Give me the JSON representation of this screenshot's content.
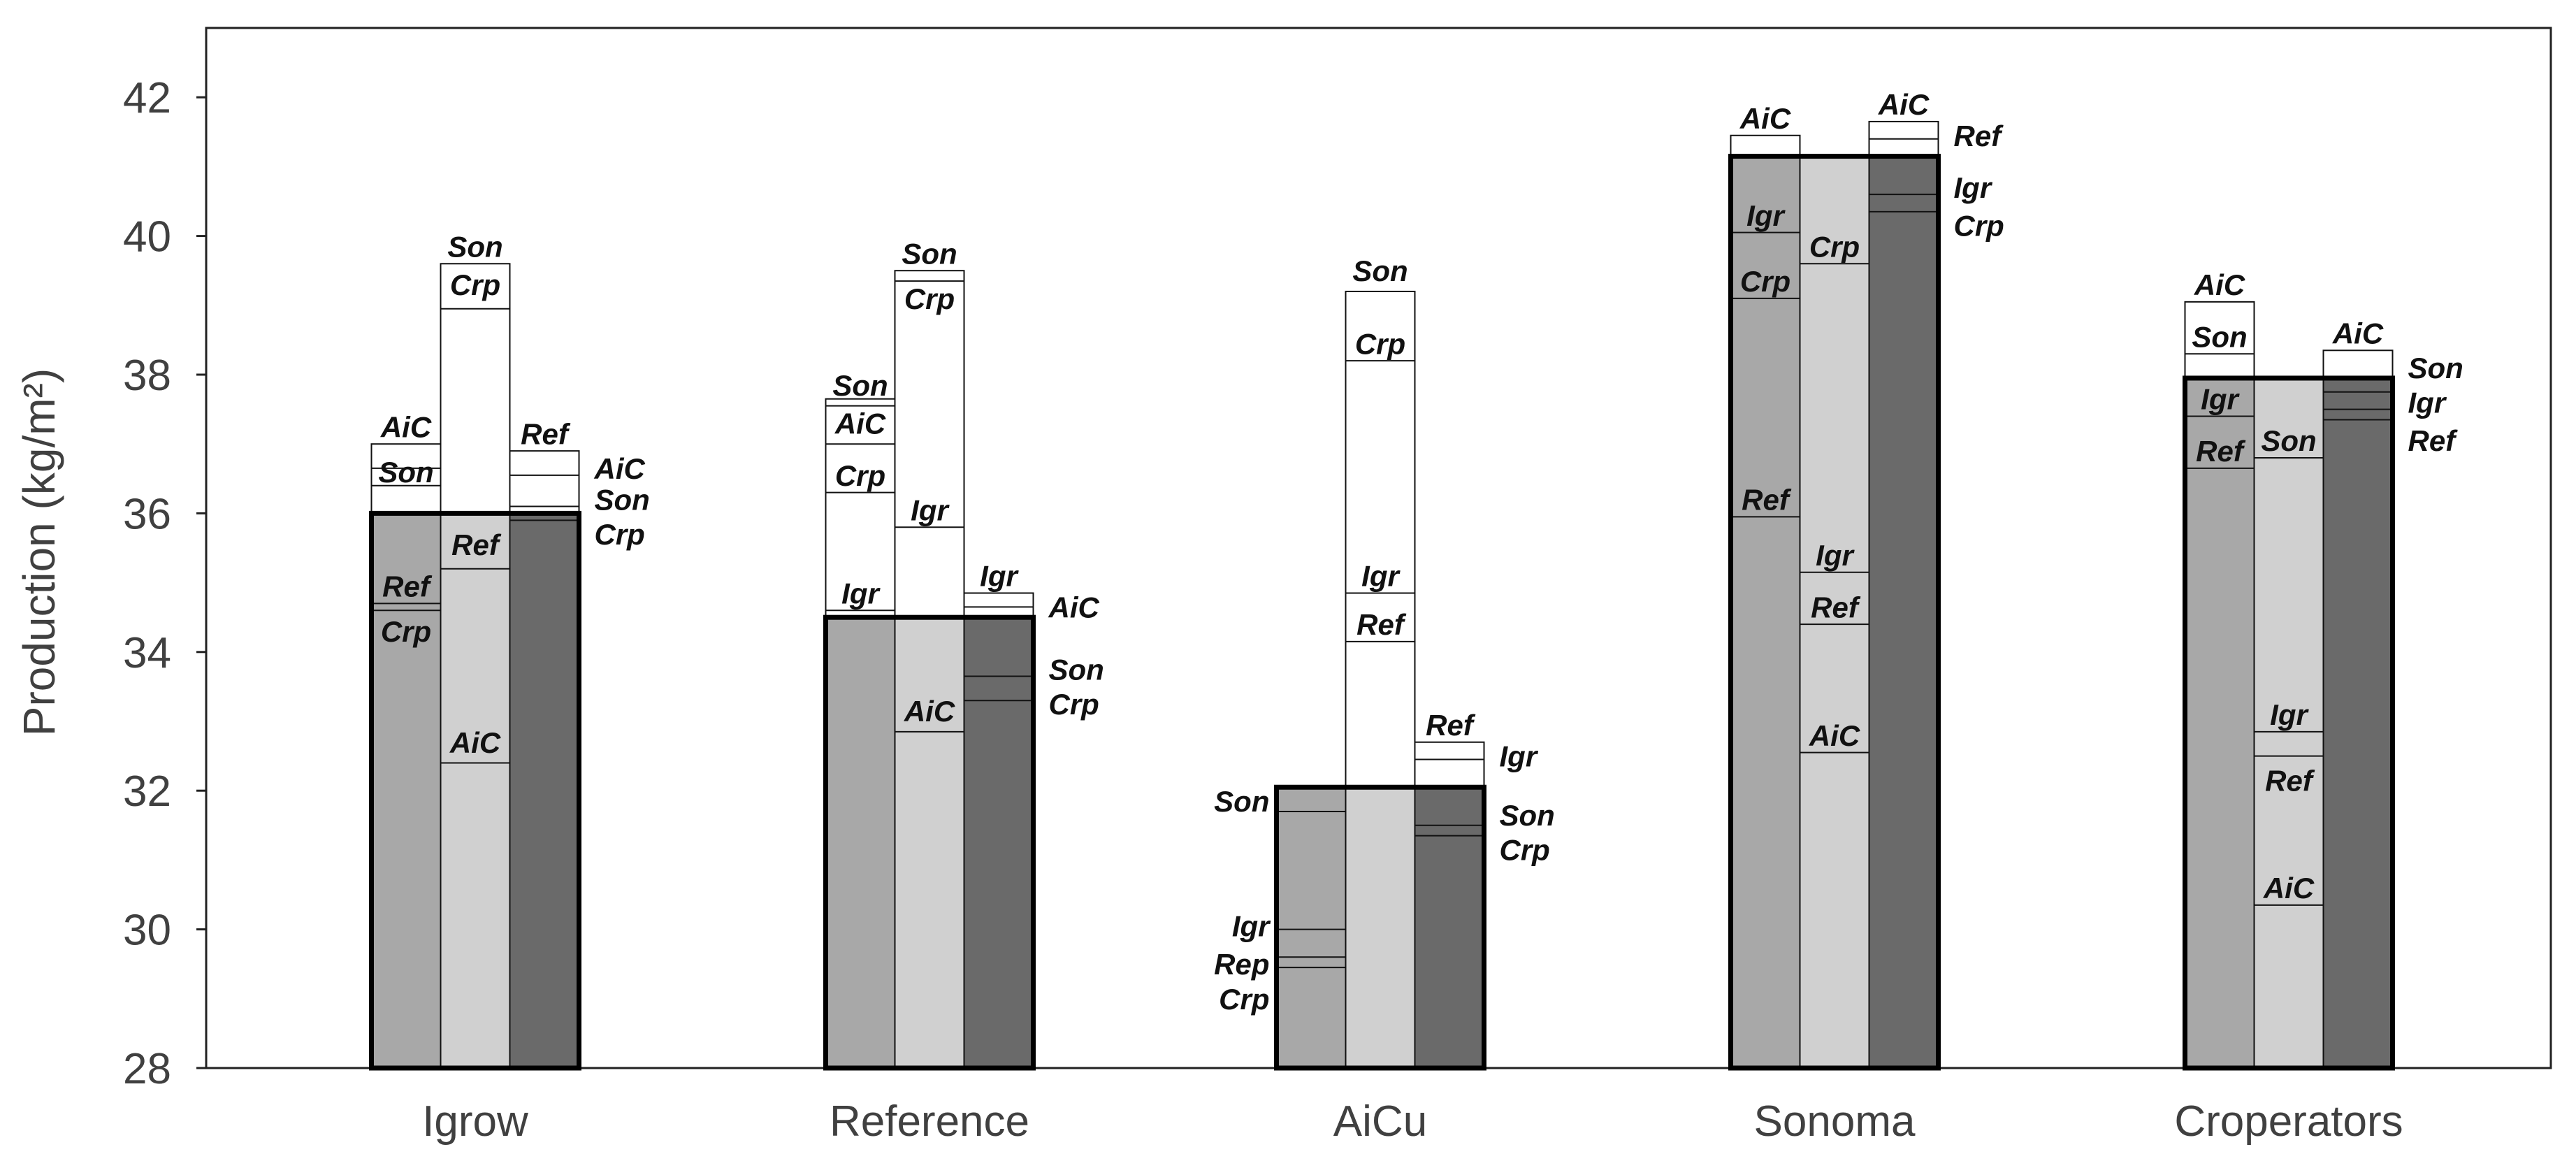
{
  "chart_data": {
    "type": "bar",
    "title": "",
    "xlabel": "",
    "ylabel": "Production (kg/m²)",
    "ylim": [
      28,
      43
    ],
    "yticks": [
      28,
      30,
      32,
      34,
      36,
      38,
      40,
      42
    ],
    "colors": {
      "col1": "#a8a8a8",
      "col2": "#d0d0d0",
      "col3": "#6a6a6a",
      "box": "#ffffff"
    },
    "groups": [
      {
        "name": "Igrow",
        "base": 36.0,
        "columns": [
          {
            "color": "col1",
            "top": 37.0,
            "lines": [
              36.65,
              36.4,
              34.7,
              34.6
            ],
            "inside": [
              {
                "t": "Ref",
                "v": 34.95
              },
              {
                "t": "Crp",
                "v": 34.3
              }
            ],
            "above": [
              {
                "t": "AiC",
                "v": 37.25
              },
              {
                "t": "Son",
                "v": 36.6
              }
            ],
            "right": []
          },
          {
            "color": "col2",
            "top": 39.6,
            "lines": [
              38.95,
              35.2,
              32.4
            ],
            "inside": [
              {
                "t": "Ref",
                "v": 35.55
              },
              {
                "t": "AiC",
                "v": 32.7
              }
            ],
            "above": [
              {
                "t": "Son",
                "v": 39.85
              },
              {
                "t": "Crp",
                "v": 39.3
              }
            ],
            "right": []
          },
          {
            "color": "col3",
            "top": 36.9,
            "lines": [
              36.55,
              36.1,
              35.9
            ],
            "inside": [],
            "above": [
              {
                "t": "Ref",
                "v": 37.15
              }
            ],
            "right": [
              {
                "t": "AiC",
                "v": 36.65
              },
              {
                "t": "Son",
                "v": 36.2
              },
              {
                "t": "Crp",
                "v": 35.7
              }
            ]
          }
        ]
      },
      {
        "name": "Reference",
        "base": 34.5,
        "columns": [
          {
            "color": "col1",
            "top": 37.65,
            "lines": [
              37.55,
              37.0,
              36.3,
              34.6
            ],
            "inside": [
              {
                "t": "Son",
                "v": 37.85
              },
              {
                "t": "AiC",
                "v": 37.3
              },
              {
                "t": "Crp",
                "v": 36.55
              }
            ],
            "above": [
              {
                "t": "Igr",
                "v": 34.85
              }
            ],
            "right": []
          },
          {
            "color": "col2",
            "top": 39.5,
            "lines": [
              39.35,
              35.8,
              32.85
            ],
            "inside": [
              {
                "t": "Crp",
                "v": 39.1
              },
              {
                "t": "Igr",
                "v": 36.05
              },
              {
                "t": "AiC",
                "v": 33.15
              }
            ],
            "above": [
              {
                "t": "Son",
                "v": 39.75
              }
            ],
            "right": []
          },
          {
            "color": "col3",
            "top": 34.85,
            "lines": [
              34.65,
              33.65,
              33.3
            ],
            "inside": [],
            "above": [
              {
                "t": "Igr",
                "v": 35.1
              }
            ],
            "right": [
              {
                "t": "AiC",
                "v": 34.65
              },
              {
                "t": "Son",
                "v": 33.75
              },
              {
                "t": "Crp",
                "v": 33.25
              }
            ]
          }
        ]
      },
      {
        "name": "AiCu",
        "base": 32.05,
        "columns": [
          {
            "color": "col1",
            "top": 32.05,
            "lines": [
              31.7,
              30.0,
              29.6,
              29.45
            ],
            "inside": [],
            "above": [],
            "left": [
              {
                "t": "Son",
                "v": 31.85
              },
              {
                "t": "Igr",
                "v": 30.05
              },
              {
                "t": "Rep",
                "v": 29.5
              },
              {
                "t": "Crp",
                "v": 29.0
              }
            ],
            "right": []
          },
          {
            "color": "col2",
            "top": 39.2,
            "lines": [
              38.2,
              34.85,
              34.15
            ],
            "inside": [
              {
                "t": "Crp",
                "v": 38.45
              },
              {
                "t": "Igr",
                "v": 35.1
              },
              {
                "t": "Ref",
                "v": 34.4
              }
            ],
            "above": [
              {
                "t": "Son",
                "v": 39.5
              }
            ],
            "right": []
          },
          {
            "color": "col3",
            "top": 32.7,
            "lines": [
              32.45,
              31.5,
              31.35
            ],
            "inside": [],
            "above": [
              {
                "t": "Ref",
                "v": 32.95
              }
            ],
            "right": [
              {
                "t": "Igr",
                "v": 32.5
              },
              {
                "t": "Son",
                "v": 31.65
              },
              {
                "t": "Crp",
                "v": 31.15
              }
            ]
          }
        ]
      },
      {
        "name": "Sonoma",
        "base": 41.15,
        "columns": [
          {
            "color": "col1",
            "top": 41.45,
            "lines": [
              40.05,
              39.1,
              35.95
            ],
            "inside": [
              {
                "t": "Igr",
                "v": 40.3
              },
              {
                "t": "Crp",
                "v": 39.35
              },
              {
                "t": "Ref",
                "v": 36.2
              }
            ],
            "above": [
              {
                "t": "AiC",
                "v": 41.7
              }
            ],
            "right": []
          },
          {
            "color": "col2",
            "top": 41.15,
            "lines": [
              39.6,
              35.15,
              34.4,
              32.55
            ],
            "inside": [
              {
                "t": "Crp",
                "v": 39.85
              },
              {
                "t": "Igr",
                "v": 35.4
              },
              {
                "t": "Ref",
                "v": 34.65
              },
              {
                "t": "AiC",
                "v": 32.8
              }
            ],
            "above": [],
            "right": []
          },
          {
            "color": "col3",
            "top": 41.65,
            "lines": [
              41.4,
              40.6,
              40.35
            ],
            "inside": [],
            "above": [
              {
                "t": "AiC",
                "v": 41.9
              }
            ],
            "right": [
              {
                "t": "Ref",
                "v": 41.45
              },
              {
                "t": "Igr",
                "v": 40.7
              },
              {
                "t": "Crp",
                "v": 40.15
              }
            ]
          }
        ]
      },
      {
        "name": "Croperators",
        "base": 37.95,
        "columns": [
          {
            "color": "col1",
            "top": 39.05,
            "lines": [
              38.3,
              37.4,
              36.65
            ],
            "inside": [
              {
                "t": "Igr",
                "v": 37.65
              },
              {
                "t": "Ref",
                "v": 36.9
              }
            ],
            "above": [
              {
                "t": "AiC",
                "v": 39.3
              },
              {
                "t": "Son",
                "v": 38.55
              }
            ],
            "right": []
          },
          {
            "color": "col2",
            "top": 37.95,
            "lines": [
              36.8,
              32.85,
              32.5,
              30.35
            ],
            "inside": [
              {
                "t": "Son",
                "v": 37.05
              },
              {
                "t": "Igr",
                "v": 33.1
              },
              {
                "t": "Ref",
                "v": 32.15
              },
              {
                "t": "AiC",
                "v": 30.6
              }
            ],
            "above": [],
            "right": []
          },
          {
            "color": "col3",
            "top": 38.35,
            "lines": [
              37.75,
              37.5,
              37.35
            ],
            "inside": [],
            "above": [
              {
                "t": "AiC",
                "v": 38.6
              }
            ],
            "right": [
              {
                "t": "Son",
                "v": 38.1
              },
              {
                "t": "Igr",
                "v": 37.6
              },
              {
                "t": "Ref",
                "v": 37.05
              }
            ]
          }
        ]
      }
    ]
  }
}
